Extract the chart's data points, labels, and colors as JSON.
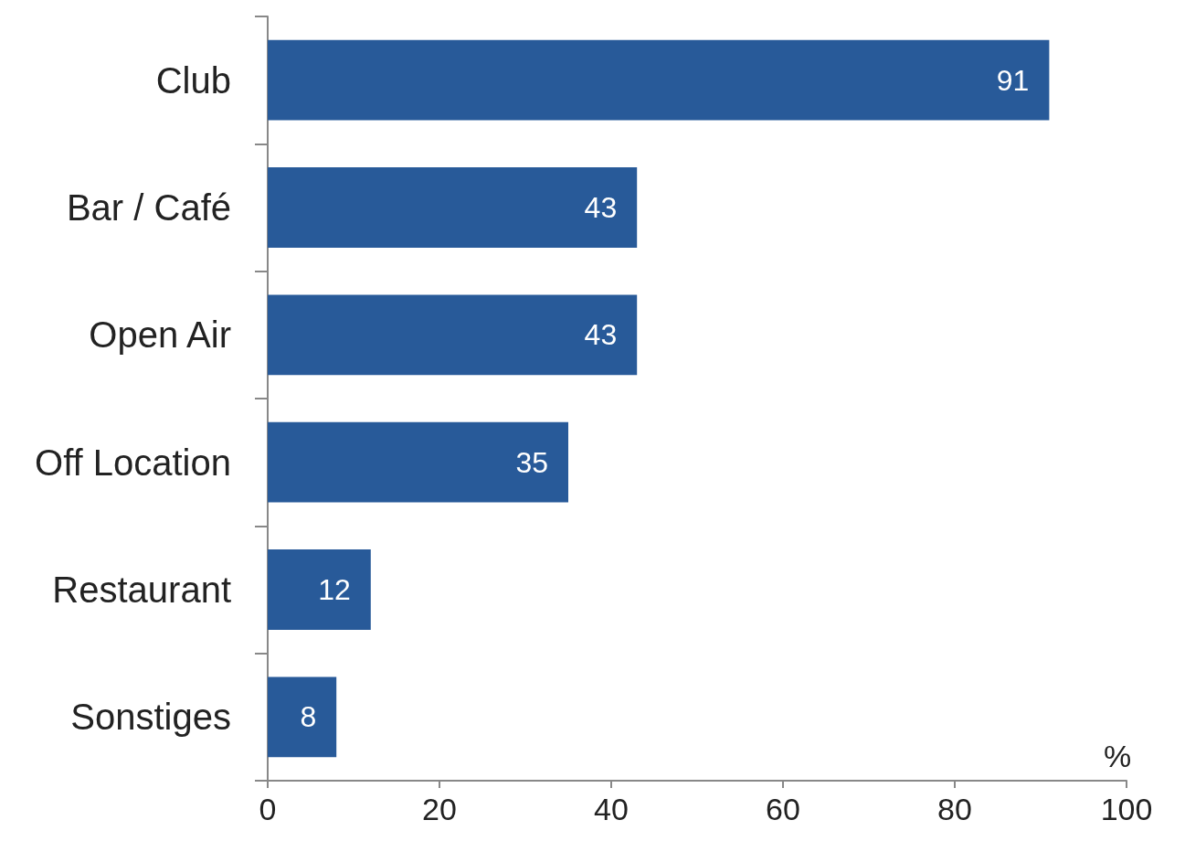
{
  "chart_data": {
    "type": "bar",
    "orientation": "horizontal",
    "xlabel": "%",
    "categories": [
      "Club",
      "Bar / Café",
      "Open Air",
      "Off Location",
      "Restaurant",
      "Sonstiges"
    ],
    "values": [
      91,
      43,
      43,
      35,
      12,
      8
    ],
    "color": "#285a99",
    "xlim": [
      0,
      100
    ],
    "xticks": [
      0,
      20,
      40,
      60,
      80,
      100
    ],
    "data_labels": true,
    "grid": false
  }
}
